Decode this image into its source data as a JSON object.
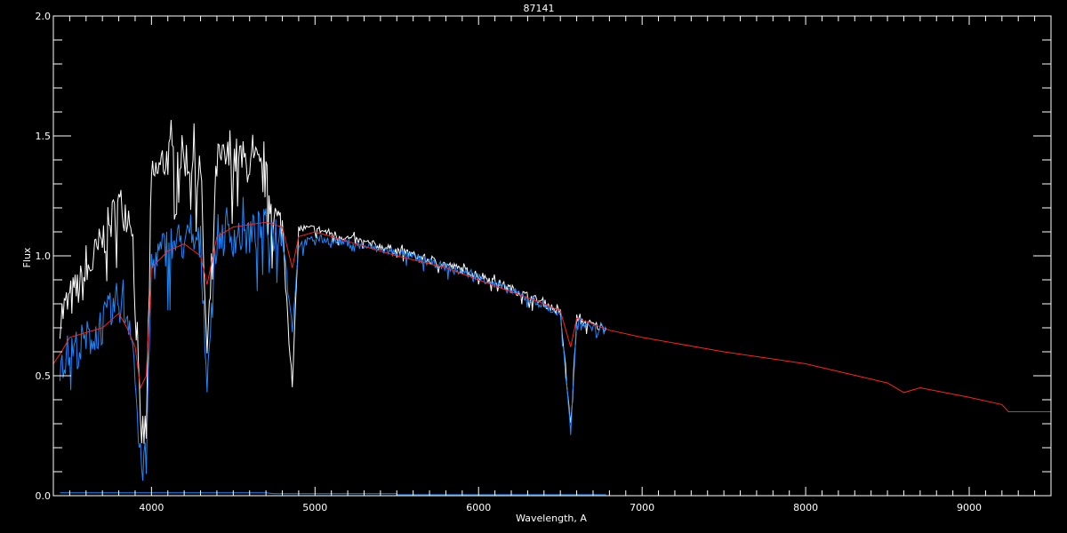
{
  "chart_data": {
    "type": "line",
    "title": "87141",
    "xlabel": "Wavelength, A",
    "ylabel": "Flux",
    "xlim": [
      3400,
      9500
    ],
    "ylim": [
      0.0,
      2.0
    ],
    "xticks": [
      4000,
      5000,
      6000,
      7000,
      8000,
      9000
    ],
    "xtick_labels": [
      "4000",
      "5000",
      "6000",
      "7000",
      "8000",
      "9000"
    ],
    "yticks": [
      0.0,
      0.5,
      1.0,
      1.5,
      2.0
    ],
    "ytick_labels": [
      "0.0",
      "0.5",
      "1.0",
      "1.5",
      "2.0"
    ],
    "grid": false,
    "background": "#000000",
    "series": [
      {
        "color": "#ffffff",
        "x": [
          3440,
          3500,
          3600,
          3700,
          3800,
          3880,
          3933,
          3968,
          4000,
          4100,
          4200,
          4300,
          4340,
          4400,
          4500,
          4600,
          4650,
          4700,
          4750,
          4800,
          4861,
          4900,
          5000,
          5200,
          5500,
          5800,
          6000,
          6200,
          6400,
          6500,
          6563,
          6600,
          6700,
          6780
        ],
        "y": [
          0.78,
          0.85,
          0.95,
          1.1,
          1.25,
          1.2,
          0.3,
          0.3,
          1.35,
          1.45,
          1.45,
          1.4,
          0.6,
          1.42,
          1.45,
          1.42,
          1.4,
          1.35,
          1.2,
          1.15,
          0.45,
          1.12,
          1.12,
          1.08,
          1.03,
          0.97,
          0.93,
          0.87,
          0.81,
          0.77,
          0.3,
          0.74,
          0.72,
          0.7
        ]
      },
      {
        "color": "#1e88ff",
        "x": [
          3440,
          3500,
          3600,
          3700,
          3800,
          3880,
          3933,
          3968,
          4000,
          4100,
          4200,
          4300,
          4340,
          4400,
          4500,
          4600,
          4700,
          4800,
          4861,
          4900,
          5000,
          5200,
          5500,
          5800,
          6000,
          6200,
          6400,
          6500,
          6563,
          6600,
          6700,
          6780
        ],
        "y": [
          0.6,
          0.63,
          0.68,
          0.75,
          0.85,
          0.75,
          0.17,
          0.17,
          1.0,
          1.08,
          1.1,
          1.08,
          0.55,
          1.12,
          1.12,
          1.12,
          1.15,
          1.12,
          0.7,
          1.05,
          1.08,
          1.06,
          1.02,
          0.96,
          0.92,
          0.86,
          0.8,
          0.76,
          0.27,
          0.74,
          0.71,
          0.69
        ]
      },
      {
        "color": "#ff2020",
        "x": [
          3400,
          3450,
          3500,
          3600,
          3700,
          3800,
          3850,
          3900,
          3933,
          3968,
          4000,
          4100,
          4200,
          4300,
          4340,
          4400,
          4500,
          4600,
          4700,
          4800,
          4861,
          4900,
          5000,
          5200,
          5500,
          5800,
          6000,
          6200,
          6400,
          6500,
          6563,
          6600,
          6800,
          7000,
          7500,
          8000,
          8500,
          8600,
          8700,
          9000,
          9200,
          9240,
          9500
        ],
        "y": [
          0.55,
          0.6,
          0.66,
          0.68,
          0.7,
          0.76,
          0.7,
          0.62,
          0.45,
          0.5,
          0.95,
          1.02,
          1.05,
          1.0,
          0.88,
          1.08,
          1.12,
          1.13,
          1.14,
          1.12,
          0.95,
          1.08,
          1.1,
          1.06,
          1.0,
          0.95,
          0.9,
          0.85,
          0.8,
          0.77,
          0.62,
          0.74,
          0.69,
          0.66,
          0.6,
          0.55,
          0.47,
          0.43,
          0.45,
          0.41,
          0.38,
          0.35,
          0.35
        ]
      },
      {
        "color": "#1e88ff",
        "x": [
          3440,
          4700,
          4750,
          5500,
          5500,
          6780
        ],
        "y": [
          0.012,
          0.012,
          0.008,
          0.008,
          0.004,
          0.004
        ]
      }
    ]
  }
}
